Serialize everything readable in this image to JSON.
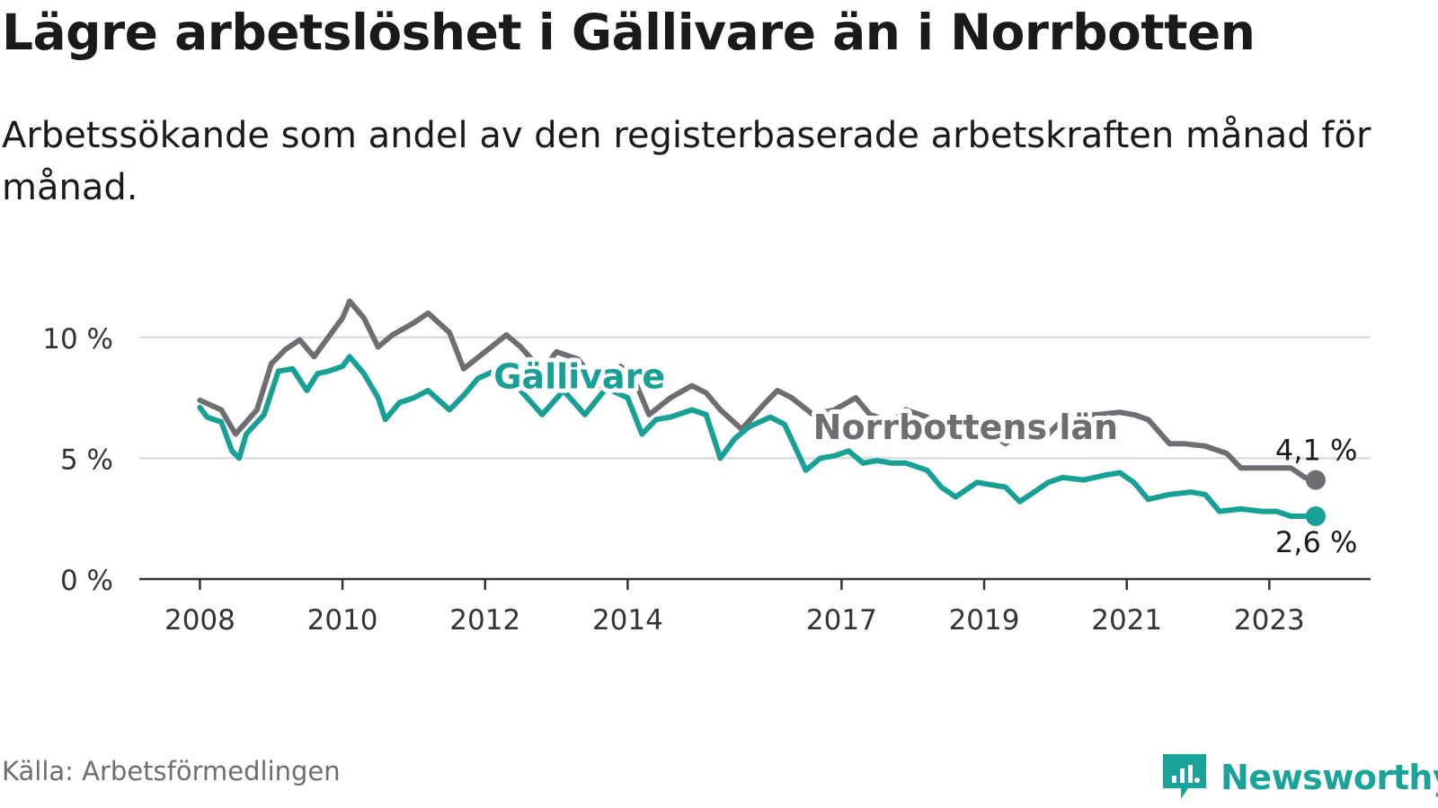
{
  "chart_data": {
    "type": "line",
    "title": "Lägre arbetslöshet i Gällivare än i Norrbotten",
    "subtitle": "Arbetssökande som andel av den registerbaserade arbetskraften månad för månad.",
    "ylim": [
      0,
      11.7
    ],
    "y_ticks": [
      {
        "value": 0,
        "label": "0 %"
      },
      {
        "value": 5,
        "label": "5 %"
      },
      {
        "value": 10,
        "label": "10 %"
      }
    ],
    "x_range": [
      2007.15,
      2024.42
    ],
    "x_ticks": [
      {
        "value": 2008,
        "label": "2008"
      },
      {
        "value": 2010,
        "label": "2010"
      },
      {
        "value": 2012,
        "label": "2012"
      },
      {
        "value": 2014,
        "label": "2014"
      },
      {
        "value": 2017,
        "label": "2017"
      },
      {
        "value": 2019,
        "label": "2019"
      },
      {
        "value": 2021,
        "label": "2021"
      },
      {
        "value": 2023,
        "label": "2023"
      }
    ],
    "series": [
      {
        "name": "Norrbottens län",
        "color": "#6f6d72",
        "end_label": "4,1 %",
        "x": [
          2008.0,
          2008.3,
          2008.5,
          2008.8,
          2009.0,
          2009.2,
          2009.4,
          2009.6,
          2009.8,
          2010.0,
          2010.1,
          2010.3,
          2010.5,
          2010.7,
          2011.0,
          2011.2,
          2011.5,
          2011.7,
          2012.0,
          2012.3,
          2012.5,
          2012.8,
          2013.0,
          2013.3,
          2013.6,
          2013.9,
          2014.1,
          2014.3,
          2014.6,
          2014.9,
          2015.1,
          2015.3,
          2015.6,
          2015.9,
          2016.1,
          2016.3,
          2016.6,
          2016.9,
          2017.2,
          2017.4,
          2017.7,
          2017.9,
          2018.2,
          2018.4,
          2018.7,
          2018.9,
          2019.1,
          2019.3,
          2019.6,
          2019.9,
          2020.1,
          2020.4,
          2020.6,
          2020.9,
          2021.1,
          2021.3,
          2021.6,
          2021.8,
          2022.1,
          2022.4,
          2022.6,
          2022.9,
          2023.1,
          2023.3,
          2023.5,
          2023.65
        ],
        "y": [
          7.4,
          7.0,
          6.0,
          7.0,
          8.9,
          9.5,
          9.9,
          9.2,
          10.0,
          10.8,
          11.5,
          10.8,
          9.6,
          10.1,
          10.6,
          11.0,
          10.2,
          8.7,
          9.4,
          10.1,
          9.6,
          8.6,
          9.4,
          9.1,
          8.0,
          8.8,
          8.2,
          6.8,
          7.5,
          8.0,
          7.7,
          7.0,
          6.2,
          7.2,
          7.8,
          7.5,
          6.8,
          7.0,
          7.5,
          6.8,
          6.5,
          7.0,
          6.7,
          6.1,
          5.9,
          6.4,
          6.0,
          5.6,
          6.3,
          6.0,
          6.6,
          6.8,
          6.8,
          6.9,
          6.8,
          6.6,
          5.6,
          5.6,
          5.5,
          5.2,
          4.6,
          4.6,
          4.6,
          4.6,
          4.2,
          4.1
        ]
      },
      {
        "name": "Gällivare",
        "color": "#16a096",
        "end_label": "2,6 %",
        "x": [
          2008.0,
          2008.1,
          2008.3,
          2008.45,
          2008.55,
          2008.65,
          2008.9,
          2009.1,
          2009.3,
          2009.5,
          2009.65,
          2009.8,
          2010.0,
          2010.1,
          2010.3,
          2010.5,
          2010.6,
          2010.8,
          2011.0,
          2011.2,
          2011.5,
          2011.7,
          2011.9,
          2012.2,
          2012.5,
          2012.8,
          2013.1,
          2013.4,
          2013.7,
          2014.0,
          2014.2,
          2014.4,
          2014.6,
          2014.9,
          2015.1,
          2015.3,
          2015.5,
          2015.7,
          2016.0,
          2016.2,
          2016.5,
          2016.7,
          2016.9,
          2017.1,
          2017.3,
          2017.5,
          2017.7,
          2017.9,
          2018.2,
          2018.4,
          2018.6,
          2018.9,
          2019.1,
          2019.3,
          2019.5,
          2019.7,
          2019.9,
          2020.1,
          2020.4,
          2020.7,
          2020.9,
          2021.1,
          2021.3,
          2021.6,
          2021.9,
          2022.1,
          2022.3,
          2022.6,
          2022.9,
          2023.1,
          2023.3,
          2023.5,
          2023.65
        ],
        "y": [
          7.1,
          6.7,
          6.5,
          5.3,
          5.0,
          6.0,
          6.8,
          8.6,
          8.7,
          7.8,
          8.5,
          8.6,
          8.8,
          9.2,
          8.5,
          7.5,
          6.6,
          7.3,
          7.5,
          7.8,
          7.0,
          7.6,
          8.3,
          8.7,
          7.8,
          6.8,
          7.8,
          6.8,
          7.9,
          7.5,
          6.0,
          6.6,
          6.7,
          7.0,
          6.8,
          5.0,
          5.8,
          6.3,
          6.7,
          6.4,
          4.5,
          5.0,
          5.1,
          5.3,
          4.8,
          4.9,
          4.8,
          4.8,
          4.5,
          3.8,
          3.4,
          4.0,
          3.9,
          3.8,
          3.2,
          3.6,
          4.0,
          4.2,
          4.1,
          4.3,
          4.4,
          4.0,
          3.3,
          3.5,
          3.6,
          3.5,
          2.8,
          2.9,
          2.8,
          2.8,
          2.6,
          2.6,
          2.6
        ]
      }
    ],
    "annotations": [
      {
        "text": "Gällivare",
        "series": "Gällivare"
      },
      {
        "text": "Norrbottens län",
        "series": "Norrbottens län"
      }
    ]
  },
  "footer": {
    "source": "Källa: Arbetsförmedlingen",
    "brand": "Newsworthy"
  },
  "colors": {
    "gallivare": "#16a096",
    "norrbotten": "#6f6d72",
    "grid": "#dcdcdc",
    "axis": "#333333"
  }
}
